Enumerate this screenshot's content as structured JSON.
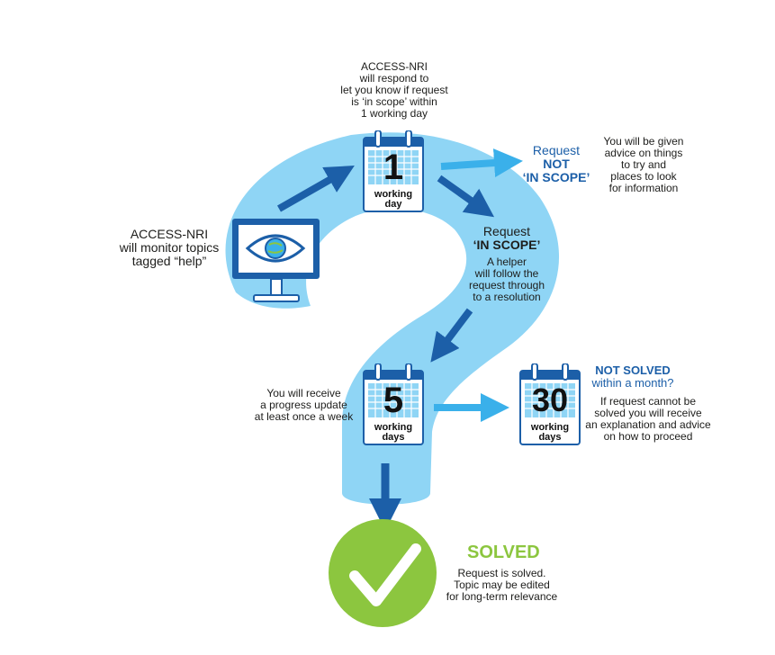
{
  "colors": {
    "shape_fill": "#8fd5f5",
    "arrow": "#1c5fa8",
    "arrow_light": "#3ab0ea",
    "solved_green": "#8cc63f",
    "text_blue": "#1c5fa8"
  },
  "monitor": {
    "icon": "monitor-eye-icon",
    "label": "ACCESS-NRI\nwill monitor topics\ntagged “help”"
  },
  "respond": {
    "label": "ACCESS-NRI\nwill respond to\nlet you know if request\nis ‘in scope’ within\n1 working day"
  },
  "cal1": {
    "number": "1",
    "caption": "working\nday"
  },
  "not_in_scope": {
    "title_prefix": "Request",
    "title_bold": "NOT\n‘IN SCOPE’",
    "desc": "You will be given\nadvice on things\nto try and\nplaces to look\nfor information"
  },
  "in_scope": {
    "title_prefix": "Request",
    "title_bold": "‘IN SCOPE’",
    "desc": "A helper\nwill follow the\nrequest through\nto a resolution"
  },
  "cal5": {
    "number": "5",
    "caption": "working\ndays",
    "desc": "You will receive\na progress update\nat least once a week"
  },
  "cal30": {
    "number": "30",
    "caption": "working\ndays"
  },
  "not_solved": {
    "title_bold": "NOT SOLVED",
    "title_rest": "within a month?",
    "desc": "If request cannot be\nsolved you will receive\nan explanation and advice\non how to proceed"
  },
  "solved": {
    "icon": "checkmark-icon",
    "title": "SOLVED",
    "desc": "Request is solved.\nTopic may be edited\nfor long-term relevance"
  }
}
